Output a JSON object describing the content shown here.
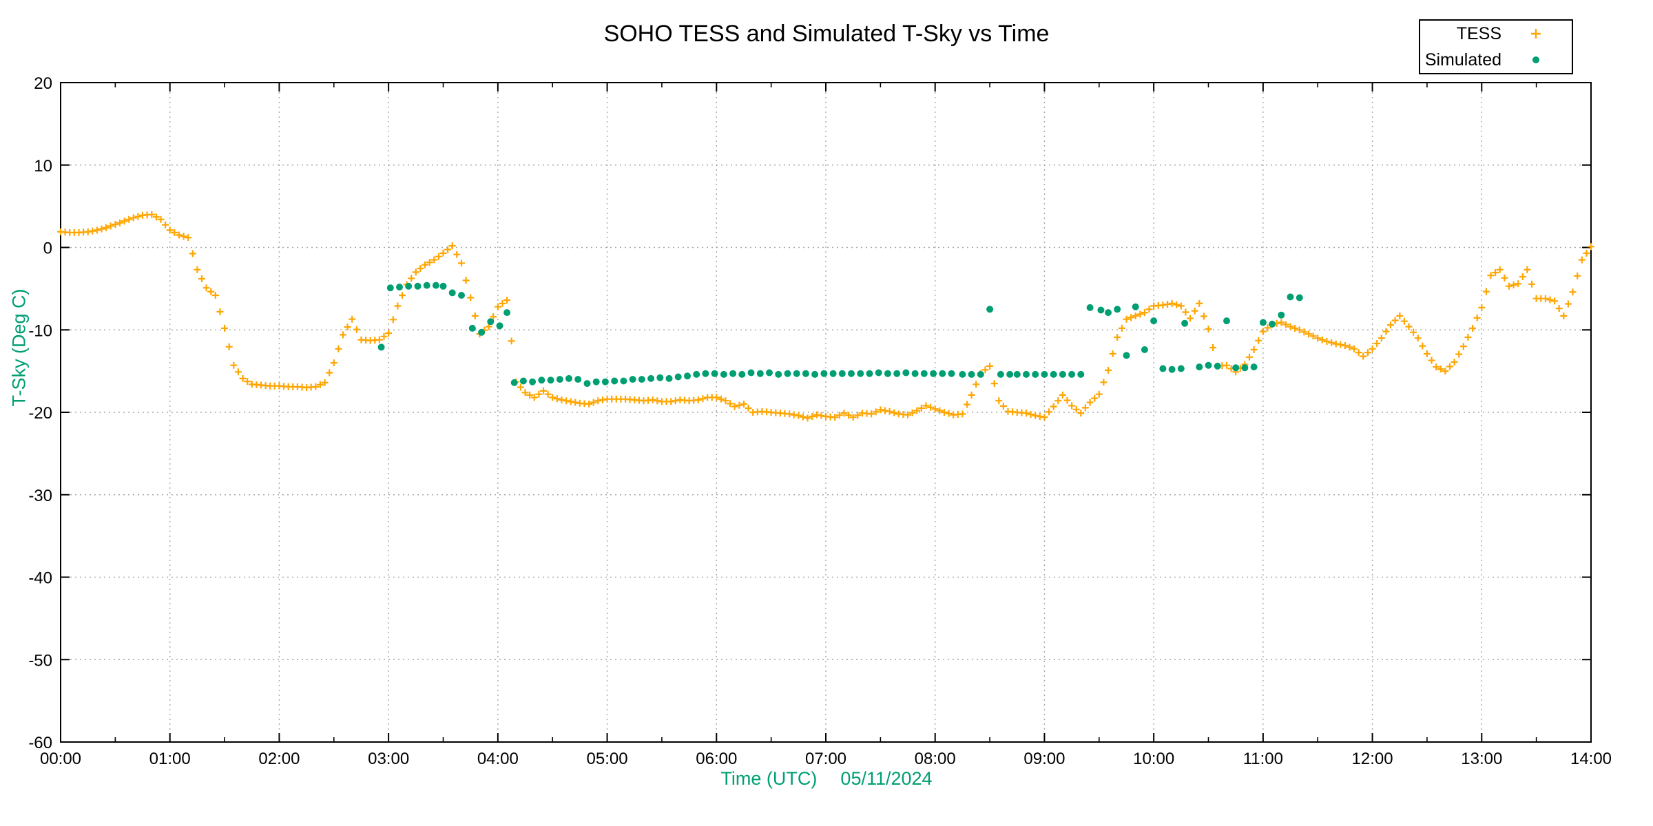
{
  "chart_data": {
    "type": "scatter",
    "title": "SOHO TESS and Simulated T-Sky vs Time",
    "xlabel": "Time (UTC)",
    "date_label": "05/11/2024",
    "ylabel": "T-Sky (Deg C)",
    "xlim_hours": [
      0,
      14
    ],
    "ylim": [
      -60,
      20
    ],
    "x_ticks": [
      "00:00",
      "01:00",
      "02:00",
      "03:00",
      "04:00",
      "05:00",
      "06:00",
      "07:00",
      "08:00",
      "09:00",
      "10:00",
      "11:00",
      "12:00",
      "13:00",
      "14:00"
    ],
    "y_ticks": [
      20,
      10,
      0,
      -10,
      -20,
      -30,
      -40,
      -50,
      -60
    ],
    "grid": true,
    "legend_position": "top-right",
    "axis_label_color": "#009E73",
    "series": [
      {
        "name": "TESS",
        "color": "#FFA500",
        "marker": "plus",
        "points": [
          [
            0,
            1.9
          ],
          [
            5,
            1.8
          ],
          [
            10,
            1.8
          ],
          [
            15,
            1.9
          ],
          [
            20,
            2.1
          ],
          [
            25,
            2.4
          ],
          [
            30,
            2.8
          ],
          [
            35,
            3.2
          ],
          [
            40,
            3.6
          ],
          [
            45,
            3.9
          ],
          [
            50,
            4.0
          ],
          [
            55,
            3.4
          ],
          [
            60,
            2.1
          ],
          [
            65,
            1.5
          ],
          [
            70,
            1.2
          ],
          [
            75,
            -2.7
          ],
          [
            80,
            -4.9
          ],
          [
            85,
            -5.8
          ],
          [
            90,
            -9.8
          ],
          [
            95,
            -14.3
          ],
          [
            100,
            -15.9
          ],
          [
            105,
            -16.6
          ],
          [
            110,
            -16.7
          ],
          [
            115,
            -16.8
          ],
          [
            120,
            -16.8
          ],
          [
            125,
            -16.9
          ],
          [
            130,
            -16.9
          ],
          [
            135,
            -17.0
          ],
          [
            140,
            -16.9
          ],
          [
            145,
            -16.4
          ],
          [
            150,
            -14.0
          ],
          [
            155,
            -10.6
          ],
          [
            160,
            -8.7
          ],
          [
            165,
            -11.2
          ],
          [
            170,
            -11.3
          ],
          [
            175,
            -11.2
          ],
          [
            180,
            -10.4
          ],
          [
            185,
            -7.1
          ],
          [
            190,
            -4.5
          ],
          [
            195,
            -3.0
          ],
          [
            200,
            -2.1
          ],
          [
            205,
            -1.5
          ],
          [
            210,
            -0.7
          ],
          [
            215,
            0.2
          ],
          [
            220,
            -1.9
          ],
          [
            225,
            -6.1
          ],
          [
            230,
            -10.5
          ],
          [
            235,
            -9.6
          ],
          [
            240,
            -7.2
          ],
          [
            245,
            -6.4
          ],
          [
            250,
            -16.3
          ],
          [
            255,
            -17.6
          ],
          [
            260,
            -18.2
          ],
          [
            265,
            -17.4
          ],
          [
            270,
            -18.2
          ],
          [
            275,
            -18.5
          ],
          [
            280,
            -18.7
          ],
          [
            285,
            -18.9
          ],
          [
            290,
            -19.0
          ],
          [
            295,
            -18.6
          ],
          [
            300,
            -18.4
          ],
          [
            305,
            -18.4
          ],
          [
            310,
            -18.4
          ],
          [
            315,
            -18.5
          ],
          [
            320,
            -18.6
          ],
          [
            325,
            -18.5
          ],
          [
            330,
            -18.7
          ],
          [
            335,
            -18.7
          ],
          [
            340,
            -18.5
          ],
          [
            345,
            -18.6
          ],
          [
            350,
            -18.5
          ],
          [
            355,
            -18.2
          ],
          [
            360,
            -18.2
          ],
          [
            365,
            -18.6
          ],
          [
            370,
            -19.3
          ],
          [
            375,
            -19.0
          ],
          [
            380,
            -20.0
          ],
          [
            385,
            -19.9
          ],
          [
            390,
            -20.0
          ],
          [
            395,
            -20.1
          ],
          [
            400,
            -20.2
          ],
          [
            405,
            -20.4
          ],
          [
            410,
            -20.7
          ],
          [
            415,
            -20.3
          ],
          [
            420,
            -20.5
          ],
          [
            425,
            -20.6
          ],
          [
            430,
            -20.1
          ],
          [
            435,
            -20.6
          ],
          [
            440,
            -20.1
          ],
          [
            445,
            -20.2
          ],
          [
            450,
            -19.7
          ],
          [
            455,
            -19.9
          ],
          [
            460,
            -20.2
          ],
          [
            465,
            -20.3
          ],
          [
            470,
            -19.8
          ],
          [
            475,
            -19.2
          ],
          [
            480,
            -19.6
          ],
          [
            485,
            -20.0
          ],
          [
            490,
            -20.3
          ],
          [
            495,
            -20.2
          ],
          [
            500,
            -17.9
          ],
          [
            505,
            -15.3
          ],
          [
            510,
            -14.4
          ],
          [
            515,
            -18.6
          ],
          [
            520,
            -19.9
          ],
          [
            525,
            -20.0
          ],
          [
            530,
            -20.1
          ],
          [
            535,
            -20.4
          ],
          [
            540,
            -20.6
          ],
          [
            545,
            -19.3
          ],
          [
            550,
            -17.9
          ],
          [
            555,
            -19.2
          ],
          [
            560,
            -20.1
          ],
          [
            565,
            -18.8
          ],
          [
            570,
            -17.8
          ],
          [
            575,
            -14.9
          ],
          [
            580,
            -10.9
          ],
          [
            585,
            -8.7
          ],
          [
            590,
            -8.3
          ],
          [
            595,
            -7.9
          ],
          [
            600,
            -7.1
          ],
          [
            605,
            -7.0
          ],
          [
            610,
            -6.8
          ],
          [
            615,
            -7.1
          ],
          [
            620,
            -8.6
          ],
          [
            625,
            -6.8
          ],
          [
            630,
            -9.9
          ],
          [
            635,
            -14.4
          ],
          [
            640,
            -14.3
          ],
          [
            645,
            -15.1
          ],
          [
            650,
            -14.2
          ],
          [
            655,
            -12.4
          ],
          [
            660,
            -10.2
          ],
          [
            665,
            -9.3
          ],
          [
            670,
            -9.1
          ],
          [
            675,
            -9.6
          ],
          [
            680,
            -10.0
          ],
          [
            685,
            -10.5
          ],
          [
            690,
            -11.0
          ],
          [
            695,
            -11.4
          ],
          [
            700,
            -11.7
          ],
          [
            705,
            -11.9
          ],
          [
            710,
            -12.3
          ],
          [
            715,
            -13.2
          ],
          [
            720,
            -12.3
          ],
          [
            725,
            -11.0
          ],
          [
            730,
            -9.4
          ],
          [
            735,
            -8.3
          ],
          [
            740,
            -9.6
          ],
          [
            745,
            -11.0
          ],
          [
            750,
            -12.9
          ],
          [
            755,
            -14.5
          ],
          [
            760,
            -15.0
          ],
          [
            765,
            -13.9
          ],
          [
            770,
            -12.0
          ],
          [
            775,
            -9.8
          ],
          [
            780,
            -7.3
          ],
          [
            785,
            -3.4
          ],
          [
            790,
            -2.7
          ],
          [
            795,
            -4.7
          ],
          [
            800,
            -4.4
          ],
          [
            805,
            -2.7
          ],
          [
            810,
            -6.2
          ],
          [
            815,
            -6.2
          ],
          [
            820,
            -6.5
          ],
          [
            825,
            -8.3
          ],
          [
            830,
            -5.4
          ],
          [
            835,
            -1.5
          ],
          [
            840,
            0.1
          ]
        ]
      },
      {
        "name": "Simulated",
        "color": "#009E73",
        "marker": "dot",
        "points": [
          [
            176,
            -12.1
          ],
          [
            181,
            -4.9
          ],
          [
            186,
            -4.8
          ],
          [
            191,
            -4.7
          ],
          [
            196,
            -4.7
          ],
          [
            201,
            -4.6
          ],
          [
            206,
            -4.6
          ],
          [
            210,
            -4.7
          ],
          [
            215,
            -5.5
          ],
          [
            220,
            -5.8
          ],
          [
            226,
            -9.8
          ],
          [
            231,
            -10.3
          ],
          [
            236,
            -9.0
          ],
          [
            241,
            -9.5
          ],
          [
            245,
            -7.9
          ],
          [
            249,
            -16.4
          ],
          [
            254,
            -16.2
          ],
          [
            259,
            -16.3
          ],
          [
            264,
            -16.1
          ],
          [
            269,
            -16.1
          ],
          [
            274,
            -16.0
          ],
          [
            279,
            -15.9
          ],
          [
            284,
            -16.0
          ],
          [
            289,
            -16.5
          ],
          [
            294,
            -16.3
          ],
          [
            299,
            -16.3
          ],
          [
            304,
            -16.2
          ],
          [
            309,
            -16.2
          ],
          [
            314,
            -16.0
          ],
          [
            319,
            -16.0
          ],
          [
            324,
            -15.9
          ],
          [
            329,
            -15.8
          ],
          [
            334,
            -15.9
          ],
          [
            339,
            -15.7
          ],
          [
            344,
            -15.6
          ],
          [
            349,
            -15.4
          ],
          [
            354,
            -15.3
          ],
          [
            359,
            -15.3
          ],
          [
            364,
            -15.4
          ],
          [
            369,
            -15.3
          ],
          [
            374,
            -15.4
          ],
          [
            379,
            -15.2
          ],
          [
            384,
            -15.3
          ],
          [
            389,
            -15.2
          ],
          [
            394,
            -15.4
          ],
          [
            399,
            -15.3
          ],
          [
            404,
            -15.3
          ],
          [
            409,
            -15.3
          ],
          [
            414,
            -15.4
          ],
          [
            419,
            -15.3
          ],
          [
            424,
            -15.3
          ],
          [
            429,
            -15.3
          ],
          [
            434,
            -15.3
          ],
          [
            439,
            -15.3
          ],
          [
            444,
            -15.3
          ],
          [
            449,
            -15.2
          ],
          [
            454,
            -15.3
          ],
          [
            459,
            -15.3
          ],
          [
            464,
            -15.2
          ],
          [
            469,
            -15.3
          ],
          [
            474,
            -15.3
          ],
          [
            479,
            -15.3
          ],
          [
            484,
            -15.3
          ],
          [
            489,
            -15.3
          ],
          [
            495,
            -15.4
          ],
          [
            500,
            -15.4
          ],
          [
            505,
            -15.4
          ],
          [
            510,
            -7.5
          ],
          [
            516,
            -15.4
          ],
          [
            521,
            -15.4
          ],
          [
            525,
            -15.4
          ],
          [
            530,
            -15.4
          ],
          [
            535,
            -15.4
          ],
          [
            540,
            -15.4
          ],
          [
            545,
            -15.4
          ],
          [
            550,
            -15.4
          ],
          [
            555,
            -15.4
          ],
          [
            560,
            -15.4
          ],
          [
            565,
            -7.3
          ],
          [
            571,
            -7.6
          ],
          [
            575,
            -7.9
          ],
          [
            580,
            -7.5
          ],
          [
            585,
            -13.1
          ],
          [
            590,
            -7.2
          ],
          [
            595,
            -12.4
          ],
          [
            600,
            -8.9
          ],
          [
            605,
            -14.7
          ],
          [
            610,
            -14.8
          ],
          [
            615,
            -14.7
          ],
          [
            617,
            -9.2
          ],
          [
            625,
            -14.5
          ],
          [
            630,
            -14.3
          ],
          [
            635,
            -14.4
          ],
          [
            640,
            -8.9
          ],
          [
            645,
            -14.6
          ],
          [
            650,
            -14.6
          ],
          [
            655,
            -14.5
          ],
          [
            660,
            -9.1
          ],
          [
            665,
            -9.3
          ],
          [
            670,
            -8.2
          ],
          [
            675,
            -6.0
          ],
          [
            680,
            -6.1
          ]
        ]
      }
    ]
  }
}
